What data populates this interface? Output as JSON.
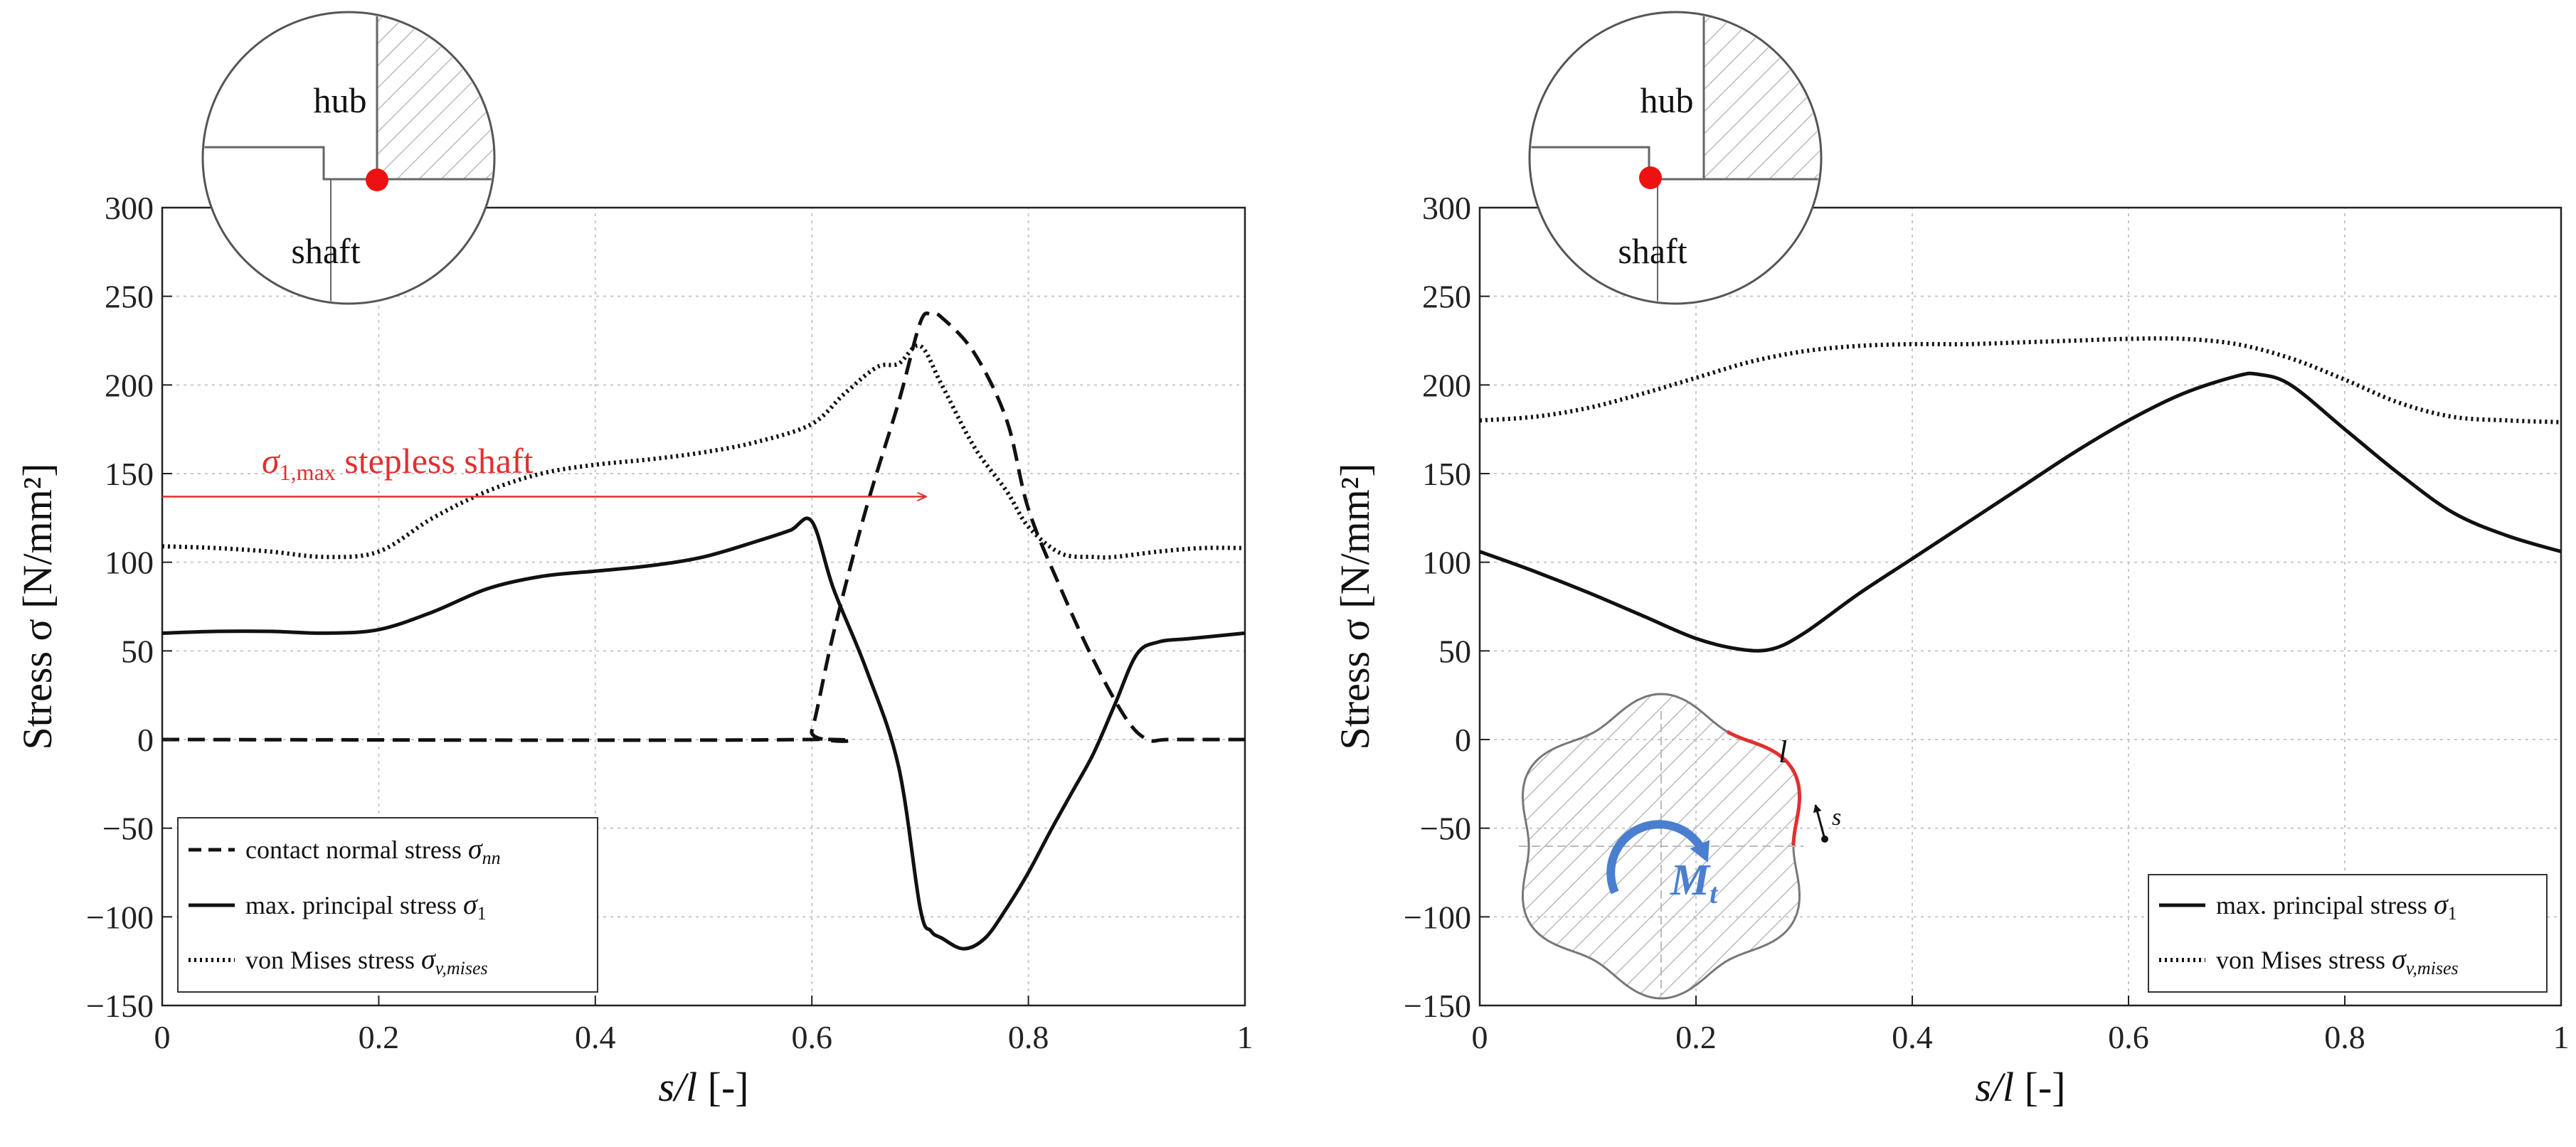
{
  "chart_data": [
    {
      "type": "line",
      "title": "",
      "xlabel": "s/l",
      "xlabel_unit": "[-]",
      "ylabel": "Stress σ [N/mm²]",
      "xlim": [
        0,
        1
      ],
      "ylim": [
        -150,
        300
      ],
      "xticks": [
        0,
        0.2,
        0.4,
        0.6,
        0.8,
        1
      ],
      "xtick_labels": [
        "0",
        "0.2",
        "0.4",
        "0.6",
        "0.8",
        "1"
      ],
      "yticks": [
        -150,
        -100,
        -50,
        0,
        50,
        100,
        150,
        200,
        250,
        300
      ],
      "ytick_labels": [
        "−150",
        "−100",
        "−50",
        "0",
        "50",
        "100",
        "150",
        "200",
        "250",
        "300"
      ],
      "grid": true,
      "legend_position": "bottom-left",
      "inset": {
        "hub_label": "hub",
        "shaft_label": "shaft",
        "marker_color": "#ee1111"
      },
      "annotation": {
        "text_symbol": "σ",
        "text_subscript": "1,max",
        "text_rest": " stepless shaft",
        "value": 137,
        "x_start": 0.0,
        "x_end": 0.705,
        "color": "#e03030"
      },
      "series": [
        {
          "name": "contact normal stress σnn",
          "label_text": "contact normal stress ",
          "label_symbol": "σ",
          "label_sub": "nn",
          "style": "dashed",
          "color": "#111111",
          "x": [
            0,
            0.59,
            0.6,
            0.62,
            0.65,
            0.68,
            0.7,
            0.71,
            0.72,
            0.75,
            0.78,
            0.8,
            0.83,
            0.86,
            0.89,
            0.91,
            0.93,
            1.0
          ],
          "y": [
            0,
            0,
            5,
            60,
            130,
            190,
            235,
            240,
            238,
            218,
            180,
            130,
            85,
            45,
            12,
            0,
            0,
            0
          ]
        },
        {
          "name": "max. principal stress σ1",
          "label_text": "max. principal stress ",
          "label_symbol": "σ",
          "label_sub": "1",
          "style": "solid",
          "color": "#111111",
          "x": [
            0,
            0.05,
            0.1,
            0.15,
            0.2,
            0.25,
            0.3,
            0.35,
            0.4,
            0.45,
            0.5,
            0.55,
            0.58,
            0.6,
            0.62,
            0.65,
            0.68,
            0.7,
            0.71,
            0.72,
            0.74,
            0.76,
            0.78,
            0.8,
            0.82,
            0.84,
            0.86,
            0.88,
            0.9,
            0.92,
            0.95,
            1.0
          ],
          "y": [
            60,
            61,
            61,
            60,
            62,
            72,
            85,
            92,
            95,
            98,
            103,
            112,
            118,
            123,
            85,
            40,
            -15,
            -95,
            -108,
            -112,
            -118,
            -112,
            -95,
            -75,
            -52,
            -30,
            -8,
            20,
            48,
            55,
            57,
            60
          ]
        },
        {
          "name": "von Mises stress σv,mises",
          "label_text": "von Mises stress ",
          "label_symbol": "σ",
          "label_sub": "v,mises",
          "style": "dotted",
          "color": "#111111",
          "x": [
            0,
            0.05,
            0.1,
            0.15,
            0.2,
            0.25,
            0.3,
            0.35,
            0.4,
            0.45,
            0.5,
            0.55,
            0.6,
            0.63,
            0.66,
            0.68,
            0.7,
            0.72,
            0.75,
            0.78,
            0.8,
            0.83,
            0.86,
            0.88,
            0.92,
            0.96,
            1.0
          ],
          "y": [
            109,
            108,
            106,
            103,
            106,
            125,
            140,
            150,
            155,
            158,
            162,
            168,
            178,
            195,
            210,
            212,
            222,
            200,
            165,
            140,
            120,
            105,
            103,
            103,
            106,
            108,
            108
          ]
        }
      ]
    },
    {
      "type": "line",
      "title": "",
      "xlabel": "s/l",
      "xlabel_unit": "[-]",
      "ylabel": "Stress σ [N/mm²]",
      "xlim": [
        0,
        1
      ],
      "ylim": [
        -150,
        300
      ],
      "xticks": [
        0,
        0.2,
        0.4,
        0.6,
        0.8,
        1
      ],
      "xtick_labels": [
        "0",
        "0.2",
        "0.4",
        "0.6",
        "0.8",
        "1"
      ],
      "yticks": [
        -150,
        -100,
        -50,
        0,
        50,
        100,
        150,
        200,
        250,
        300
      ],
      "ytick_labels": [
        "−150",
        "−100",
        "−50",
        "0",
        "50",
        "100",
        "150",
        "200",
        "250",
        "300"
      ],
      "grid": true,
      "legend_position": "bottom-right",
      "inset": {
        "hub_label": "hub",
        "shaft_label": "shaft",
        "marker_color": "#ee1111"
      },
      "profile_inset": {
        "moment_symbol": "M",
        "moment_sub": "t",
        "arc_label": "l",
        "coord_label": "s",
        "moment_color": "#4a7fd0",
        "arc_color": "#e03030"
      },
      "series": [
        {
          "name": "max. principal stress σ1",
          "label_text": "max. principal stress ",
          "label_symbol": "σ",
          "label_sub": "1",
          "style": "solid",
          "color": "#111111",
          "x": [
            0,
            0.05,
            0.1,
            0.15,
            0.2,
            0.24,
            0.27,
            0.3,
            0.35,
            0.4,
            0.45,
            0.5,
            0.55,
            0.6,
            0.65,
            0.7,
            0.72,
            0.75,
            0.8,
            0.85,
            0.9,
            0.95,
            1.0
          ],
          "y": [
            106,
            95,
            83,
            70,
            57,
            51,
            51,
            60,
            82,
            102,
            122,
            142,
            162,
            180,
            195,
            205,
            206,
            200,
            175,
            150,
            128,
            115,
            106
          ]
        },
        {
          "name": "von Mises stress σv,mises",
          "label_text": "von Mises stress ",
          "label_symbol": "σ",
          "label_sub": "v,mises",
          "style": "dotted",
          "color": "#111111",
          "x": [
            0,
            0.05,
            0.1,
            0.15,
            0.2,
            0.25,
            0.3,
            0.35,
            0.4,
            0.45,
            0.5,
            0.55,
            0.6,
            0.65,
            0.7,
            0.75,
            0.8,
            0.85,
            0.9,
            0.95,
            1.0
          ],
          "y": [
            180,
            182,
            187,
            195,
            204,
            213,
            219,
            222,
            223,
            223,
            224,
            225,
            226,
            226,
            223,
            215,
            203,
            190,
            182,
            180,
            179
          ]
        }
      ]
    }
  ]
}
